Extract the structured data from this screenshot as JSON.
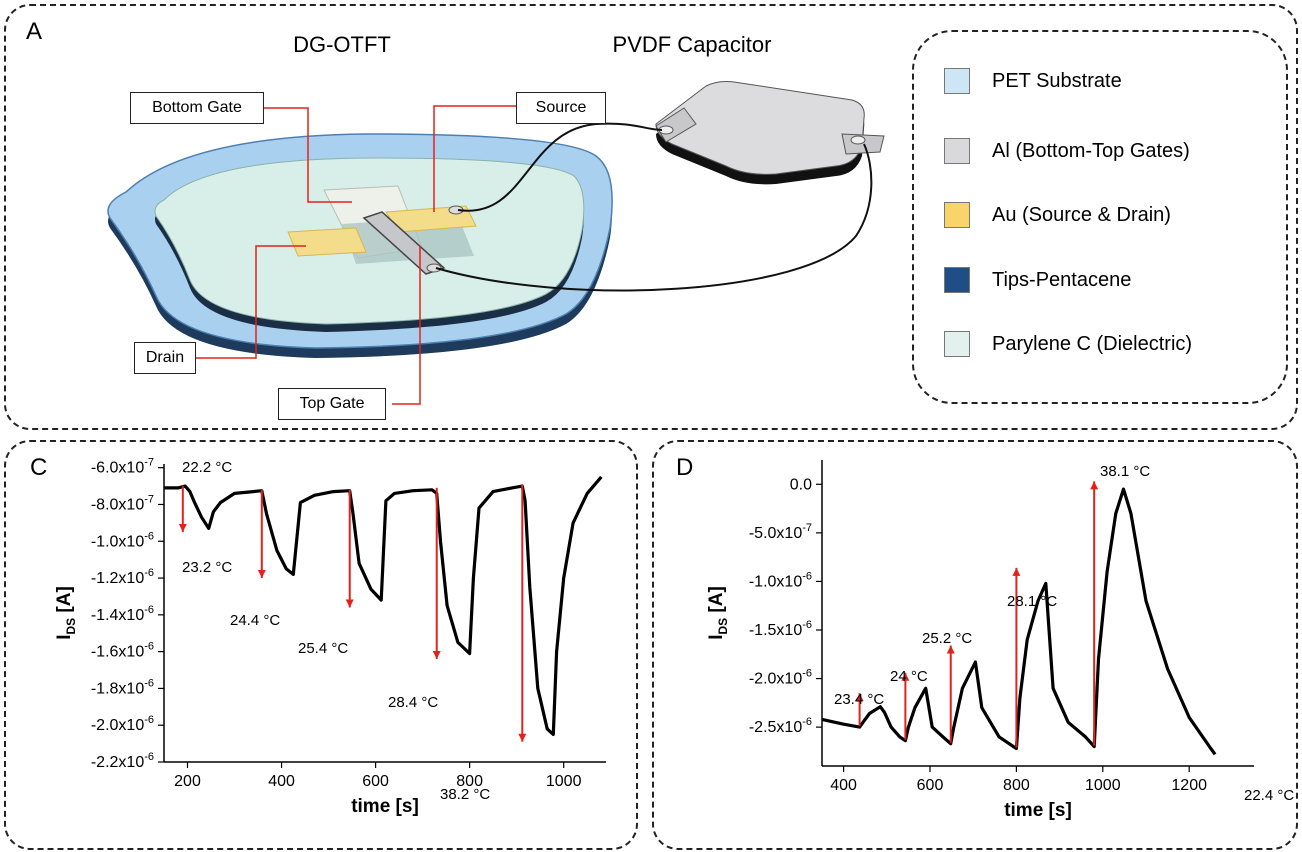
{
  "panel_a": {
    "letter": "A",
    "title_otft": "DG-OTFT",
    "title_capacitor": "PVDF Capacitor",
    "callouts": {
      "bottom_gate": "Bottom Gate",
      "source": "Source",
      "drain": "Drain",
      "top_gate": "Top Gate"
    },
    "legend": [
      {
        "label": "PET Substrate",
        "color": "#cde6f6"
      },
      {
        "label": "Al (Bottom-Top Gates)",
        "color": "#d9d9db"
      },
      {
        "label": "Au (Source & Drain)",
        "color": "#f9d46a"
      },
      {
        "label": "Tips-Pentacene",
        "color": "#1f4e87"
      },
      {
        "label": "Parylene C (Dielectric)",
        "color": "#e2f1ee"
      }
    ],
    "callout_color": "#e2231a"
  },
  "chart_data": [
    {
      "panel": "C",
      "type": "line",
      "xlabel": "time [s]",
      "ylabel": "I",
      "ylabel_sub": "DS",
      "ylabel_unit": "[A]",
      "xlim": [
        150,
        1090
      ],
      "ylim": [
        -2.2e-06,
        -5.8e-07
      ],
      "xticks": [
        200,
        400,
        600,
        800,
        1000
      ],
      "yticks": [
        {
          "value": -6e-07,
          "mantissa": "-6.0x10",
          "exp": "-7"
        },
        {
          "value": -8e-07,
          "mantissa": "-8.0x10",
          "exp": "-7"
        },
        {
          "value": -1e-06,
          "mantissa": "-1.0x10",
          "exp": "-6"
        },
        {
          "value": -1.2e-06,
          "mantissa": "-1.2x10",
          "exp": "-6"
        },
        {
          "value": -1.4e-06,
          "mantissa": "-1.4x10",
          "exp": "-6"
        },
        {
          "value": -1.6e-06,
          "mantissa": "-1.6x10",
          "exp": "-6"
        },
        {
          "value": -1.8e-06,
          "mantissa": "-1.8x10",
          "exp": "-6"
        },
        {
          "value": -2e-06,
          "mantissa": "-2.0x10",
          "exp": "-6"
        },
        {
          "value": -2.2e-06,
          "mantissa": "-2.2x10",
          "exp": "-6"
        }
      ],
      "series": [
        {
          "x": [
            150,
            180,
            195,
            205,
            215,
            230,
            245,
            255,
            270,
            300,
            340,
            358,
            368,
            390,
            410,
            425,
            440,
            470,
            510,
            545,
            552,
            565,
            590,
            612,
            622,
            640,
            680,
            720,
            730,
            738,
            752,
            775,
            800,
            808,
            820,
            850,
            890,
            912,
            918,
            928,
            945,
            965,
            978,
            985,
            1000,
            1020,
            1050,
            1080
          ],
          "y": [
            -7.1e-07,
            -7.1e-07,
            -7e-07,
            -7.3e-07,
            -7.9e-07,
            -8.7e-07,
            -9.3e-07,
            -8.4e-07,
            -7.9e-07,
            -7.4e-07,
            -7.3e-07,
            -7.25e-07,
            -8.5e-07,
            -1.05e-06,
            -1.15e-06,
            -1.18e-06,
            -7.9e-07,
            -7.5e-07,
            -7.3e-07,
            -7.25e-07,
            -8.5e-07,
            -1.12e-06,
            -1.26e-06,
            -1.32e-06,
            -7.8e-07,
            -7.4e-07,
            -7.25e-07,
            -7.2e-07,
            -7.4e-07,
            -1e-06,
            -1.35e-06,
            -1.55e-06,
            -1.61e-06,
            -1.2e-06,
            -8.2e-07,
            -7.3e-07,
            -7.1e-07,
            -7e-07,
            -7.8e-07,
            -1.25e-06,
            -1.8e-06,
            -2.02e-06,
            -2.05e-06,
            -1.6e-06,
            -1.2e-06,
            -9e-07,
            -7.4e-07,
            -6.5e-07
          ]
        }
      ],
      "annotations": [
        {
          "text": "22.2 °C",
          "x": 190,
          "y_from": -7e-07,
          "y_to": null
        },
        {
          "text": "23.2 °C",
          "x": 190,
          "y_from": -7e-07,
          "y_to": -9.5e-07
        },
        {
          "text": "24.4 °C",
          "x": 358,
          "y_from": -7.2e-07,
          "y_to": -1.2e-06
        },
        {
          "text": "25.4 °C",
          "x": 545,
          "y_from": -7.2e-07,
          "y_to": -1.36e-06
        },
        {
          "text": "28.4 °C",
          "x": 730,
          "y_from": -7.1e-07,
          "y_to": -1.64e-06
        },
        {
          "text": "38.2 °C",
          "x": 912,
          "y_from": -6.9e-07,
          "y_to": -2.09e-06
        }
      ]
    },
    {
      "panel": "D",
      "type": "line",
      "xlabel": "time [s]",
      "ylabel": "I",
      "ylabel_sub": "DS",
      "ylabel_unit": "[A]",
      "xlim": [
        350,
        1350
      ],
      "ylim": [
        -2.9e-06,
        2.5e-07
      ],
      "xticks": [
        400,
        600,
        800,
        1000,
        1200
      ],
      "yticks": [
        {
          "value": 0,
          "mantissa": "0.0",
          "exp": ""
        },
        {
          "value": -5e-07,
          "mantissa": "-5.0x10",
          "exp": "-7"
        },
        {
          "value": -1e-06,
          "mantissa": "-1.0x10",
          "exp": "-6"
        },
        {
          "value": -1.5e-06,
          "mantissa": "-1.5x10",
          "exp": "-6"
        },
        {
          "value": -2e-06,
          "mantissa": "-2.0x10",
          "exp": "-6"
        },
        {
          "value": -2.5e-06,
          "mantissa": "-2.5x10",
          "exp": "-6"
        }
      ],
      "series": [
        {
          "x": [
            350,
            400,
            437,
            445,
            460,
            485,
            495,
            510,
            530,
            543,
            550,
            565,
            590,
            605,
            630,
            648,
            655,
            675,
            705,
            720,
            760,
            800,
            808,
            825,
            850,
            868,
            885,
            920,
            960,
            980,
            990,
            1010,
            1030,
            1048,
            1065,
            1100,
            1150,
            1200,
            1250,
            1260
          ],
          "y": [
            -2.42e-06,
            -2.47e-06,
            -2.5e-06,
            -2.45e-06,
            -2.36e-06,
            -2.29e-06,
            -2.35e-06,
            -2.5e-06,
            -2.6e-06,
            -2.64e-06,
            -2.5e-06,
            -2.3e-06,
            -2.1e-06,
            -2.5e-06,
            -2.6e-06,
            -2.67e-06,
            -2.5e-06,
            -2.1e-06,
            -1.83e-06,
            -2.3e-06,
            -2.6e-06,
            -2.72e-06,
            -2.2e-06,
            -1.6e-06,
            -1.2e-06,
            -1.02e-06,
            -2.1e-06,
            -2.45e-06,
            -2.6e-06,
            -2.7e-06,
            -1.8e-06,
            -9e-07,
            -3e-07,
            -5e-08,
            -3e-07,
            -1.2e-06,
            -1.9e-06,
            -2.4e-06,
            -2.72e-06,
            -2.78e-06
          ]
        }
      ],
      "annotations": [
        {
          "text": "23.4 °C",
          "x": 437,
          "y_from": -2.49e-06,
          "y_to": -2.15e-06
        },
        {
          "text": "24 °C",
          "x": 543,
          "y_from": -2.63e-06,
          "y_to": -1.94e-06
        },
        {
          "text": "25.2 °C",
          "x": 648,
          "y_from": -2.66e-06,
          "y_to": -1.66e-06
        },
        {
          "text": "28.1 °C",
          "x": 800,
          "y_from": -2.71e-06,
          "y_to": -8.6e-07
        },
        {
          "text": "38.1 °C",
          "x": 980,
          "y_from": -2.69e-06,
          "y_to": 3e-08
        },
        {
          "text": "22.4 °C",
          "x": 1262,
          "y_from": null,
          "y_to": null
        }
      ]
    }
  ]
}
